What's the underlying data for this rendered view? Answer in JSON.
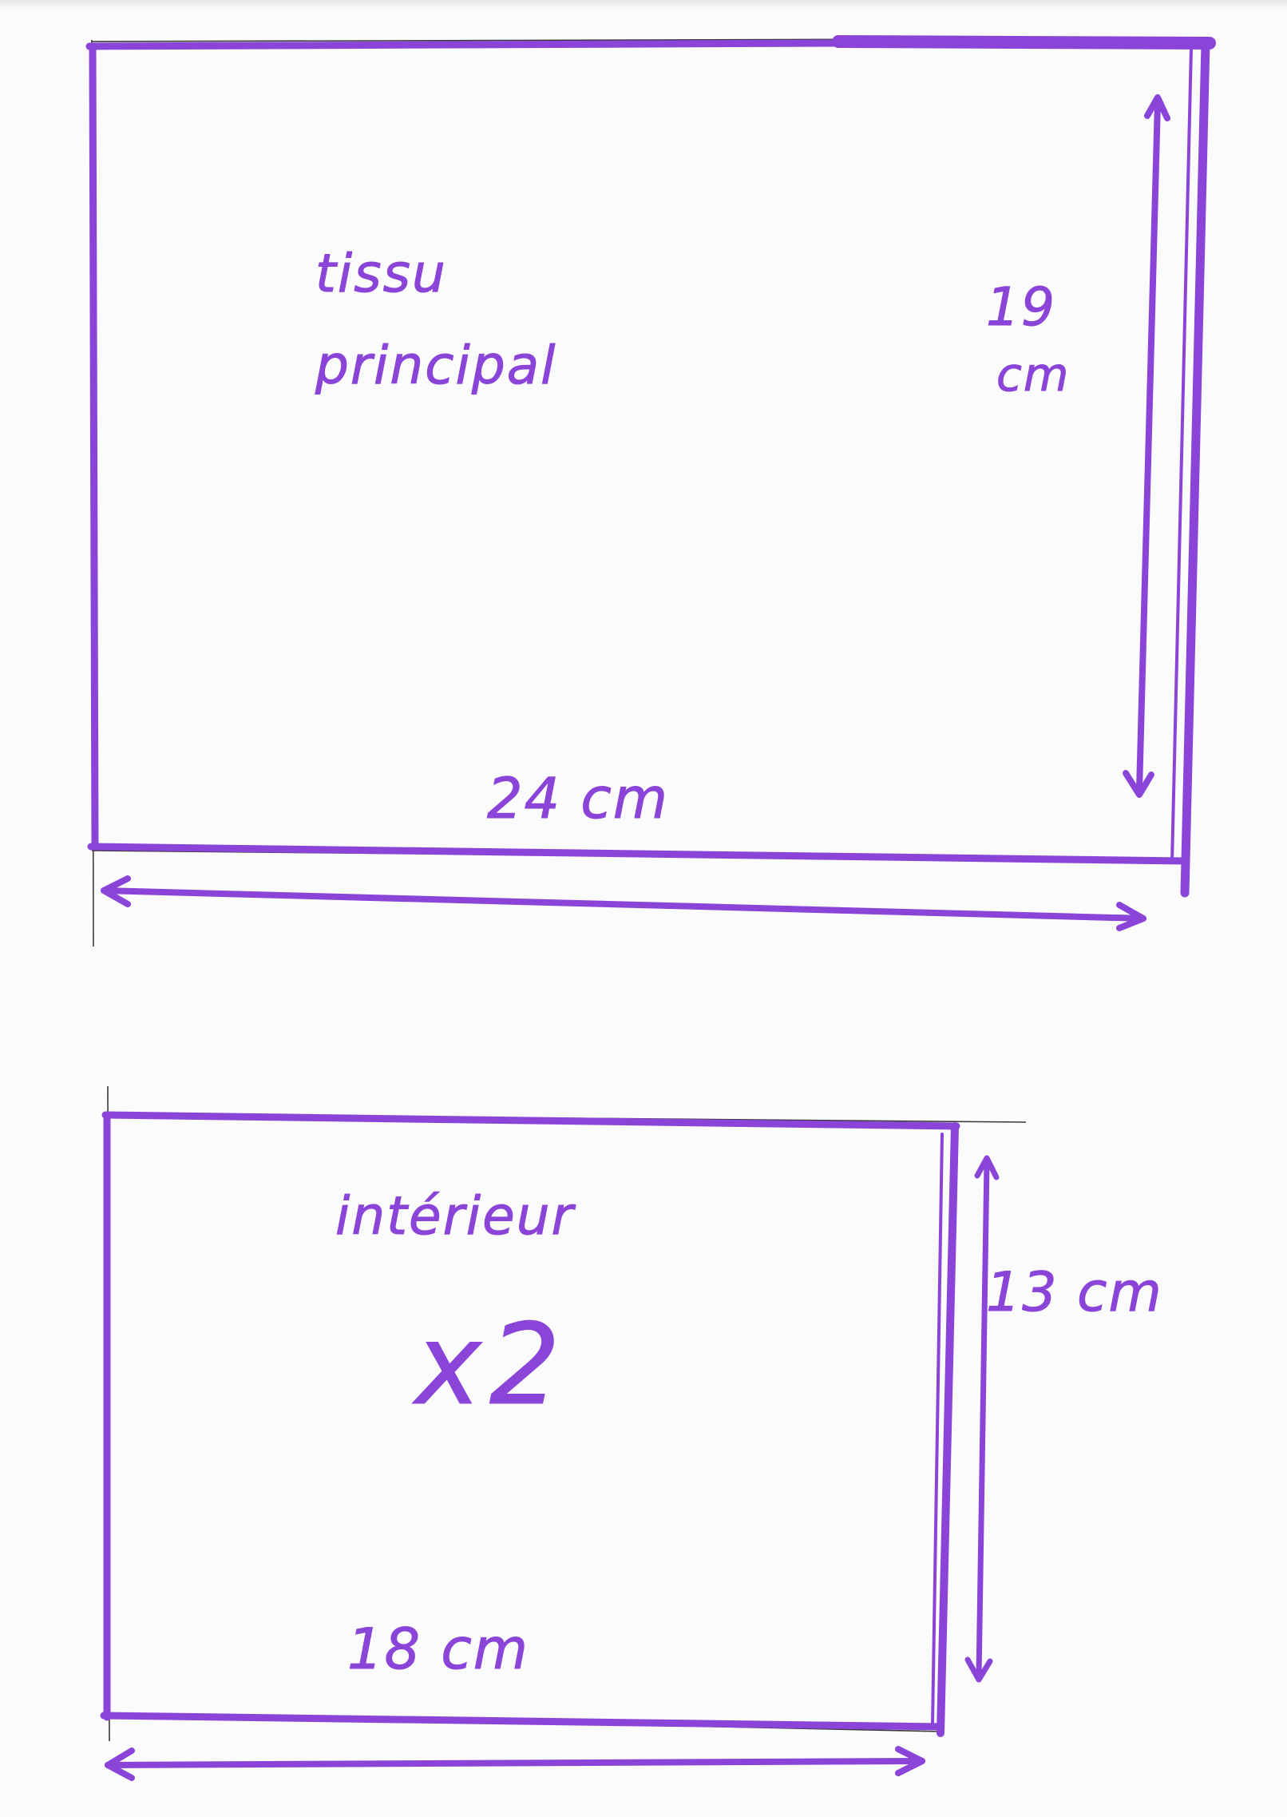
{
  "pieces": [
    {
      "name_lines": [
        "tissu",
        "principal"
      ],
      "width": "24 cm",
      "height_lines": [
        "19",
        "cm"
      ]
    },
    {
      "name": "intérieur",
      "quantity": "x2",
      "width": "18 cm",
      "height": "13 cm"
    }
  ],
  "colors": {
    "marker": "#8a45d8",
    "pencil": "#3a3a3a",
    "paper": "#fbfbfb"
  }
}
